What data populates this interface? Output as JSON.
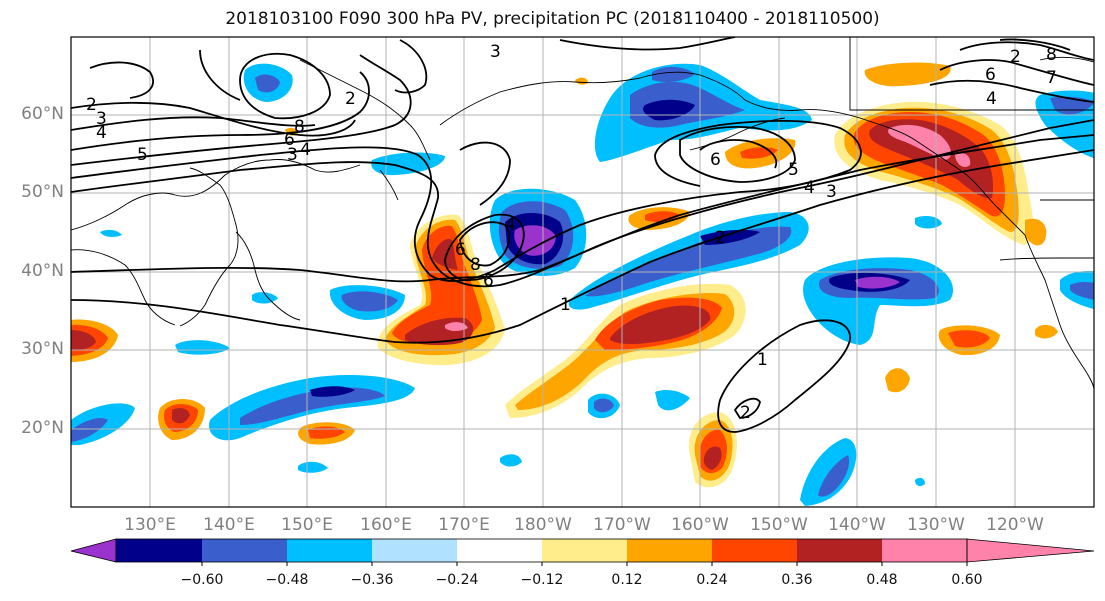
{
  "title": "2018103100 F090 300 hPa PV, precipitation PC (2018110400 - 2018110500)",
  "lat_labels": [
    "60°N",
    "50°N",
    "40°N",
    "30°N",
    "20°N"
  ],
  "lon_labels": [
    "130°E",
    "140°E",
    "150°E",
    "160°E",
    "170°E",
    "180°W",
    "170°W",
    "160°W",
    "150°W",
    "140°W",
    "130°W",
    "120°W"
  ],
  "contour_labels": [
    "2",
    "3",
    "4",
    "5",
    "8",
    "6",
    "4",
    "3",
    "2",
    "3",
    "4",
    "6",
    "8",
    "6",
    "1",
    "2",
    "6",
    "5",
    "4",
    "3",
    "2",
    "8",
    "7",
    "6",
    "4",
    "1",
    "2"
  ],
  "colorbar": {
    "tick_labels": [
      "−0.60",
      "−0.48",
      "−0.36",
      "−0.24",
      "−0.12",
      "0.12",
      "0.24",
      "0.36",
      "0.48",
      "0.60"
    ],
    "colors": [
      "#9a32cd",
      "#00008b",
      "#3a5fcd",
      "#00bfff",
      "#b0e2ff",
      "#ffffff",
      "#ffec8b",
      "#ffa500",
      "#ff4500",
      "#b22222",
      "#ff82ab"
    ]
  },
  "colors": {
    "neg_strong": "#9a32cd",
    "neg_navy": "#00008b",
    "neg_mid": "#3a5fcd",
    "neg_cyan": "#00bfff",
    "neg_light": "#b0e2ff",
    "pos_yellow": "#ffec8b",
    "pos_orange": "#ffa500",
    "pos_red": "#ff4500",
    "pos_dark": "#b22222",
    "pos_pink": "#ff82ab",
    "grid": "#b3b3b3",
    "axis_label": "#808080"
  }
}
